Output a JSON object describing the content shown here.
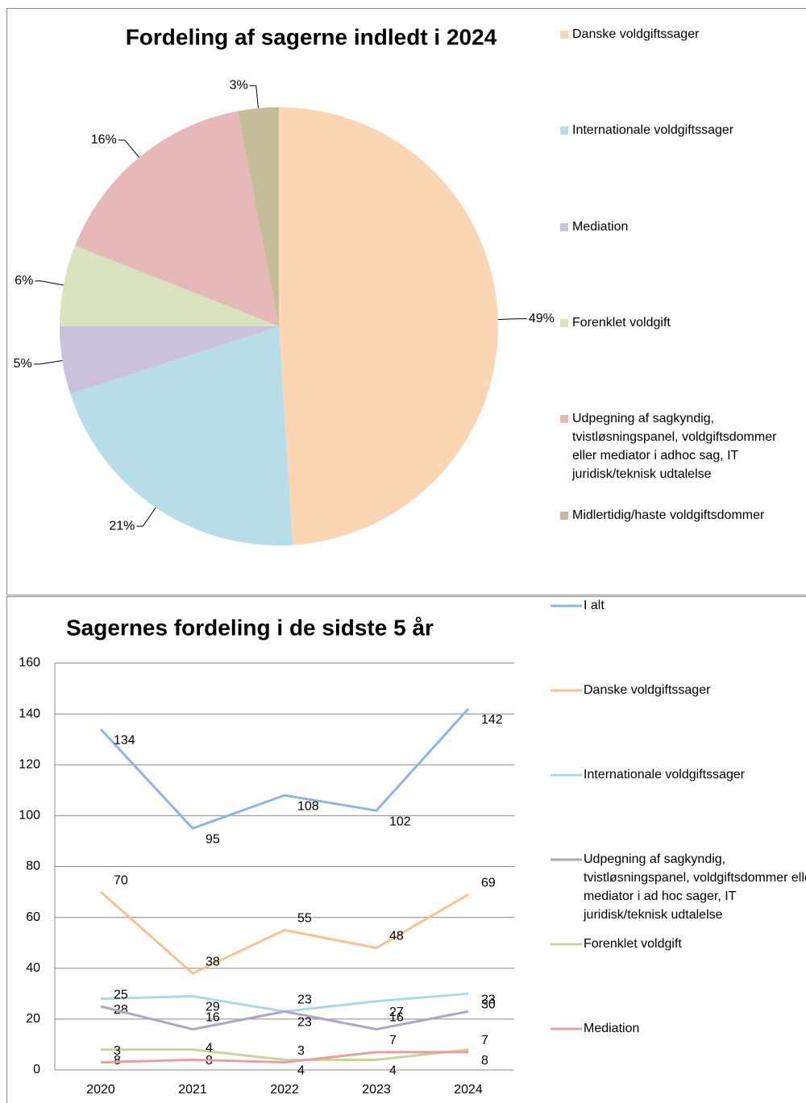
{
  "chart_data": [
    {
      "type": "pie",
      "title": "Fordeling af sagerne indledt i 2024",
      "categories": [
        "Danske voldgiftssager",
        "Internationale voldgiftssager",
        "Mediation",
        "Forenklet voldgift",
        "Udpegning af sagkyndig, tvistløsningspanel, voldgiftsdommer eller mediator i adhoc sag, IT juridisk/teknisk udtalelse",
        "Midlertidig/haste voldgiftsdommer"
      ],
      "values": [
        49,
        21,
        5,
        6,
        16,
        3
      ],
      "value_labels": [
        "49%",
        "21%",
        "5%",
        "6%",
        "16%",
        "3%"
      ],
      "colors": [
        "#fcd5b5",
        "#b7dee8",
        "#ccc1da",
        "#d7e4bd",
        "#e6b9b8",
        "#c4bd97"
      ],
      "legend": "right"
    },
    {
      "type": "line",
      "title": "Sagernes fordeling i de sidste 5 år",
      "categories": [
        "2020",
        "2021",
        "2022",
        "2023",
        "2024"
      ],
      "series": [
        {
          "name": "I alt",
          "color": "#8eb4e3",
          "values": [
            134,
            95,
            108,
            102,
            142
          ]
        },
        {
          "name": "Danske voldgiftssager",
          "color": "#fac090",
          "values": [
            70,
            38,
            55,
            48,
            69
          ]
        },
        {
          "name": "Internationale voldgiftssager",
          "color": "#a9d8e6",
          "values": [
            28,
            29,
            23,
            27,
            30
          ]
        },
        {
          "name": "Udpegning af sagkyndig, tvistløsningspanel, voldgiftsdommer eller mediator i ad hoc sager, IT juridisk/teknisk udtalelse",
          "color": "#b3a2c7",
          "values": [
            25,
            16,
            23,
            16,
            23
          ]
        },
        {
          "name": "Forenklet voldgift",
          "color": "#c3d69b",
          "values": [
            8,
            8,
            4,
            4,
            8
          ]
        },
        {
          "name": "Mediation",
          "color": "#e6a0a0",
          "values": [
            3,
            4,
            3,
            7,
            7
          ]
        }
      ],
      "ylim": [
        0,
        160
      ],
      "yticks": [
        0,
        20,
        40,
        60,
        80,
        100,
        120,
        140,
        160
      ],
      "grid": true,
      "legend": "right"
    }
  ]
}
